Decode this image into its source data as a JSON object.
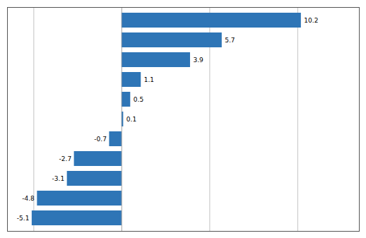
{
  "chart_data": {
    "type": "bar",
    "orientation": "horizontal",
    "categories": [
      null,
      null,
      null,
      null,
      null,
      null,
      null,
      null,
      null,
      null,
      null
    ],
    "values": [
      10.2,
      5.7,
      3.9,
      1.1,
      0.5,
      0.1,
      -0.7,
      -2.7,
      -3.1,
      -4.8,
      -5.1
    ],
    "color": "#2E75B6",
    "xlim": [
      -6.5,
      13.5
    ],
    "xticks": [
      -5,
      0,
      5,
      10
    ],
    "grid": true,
    "data_labels": true,
    "tick_labels": false
  }
}
